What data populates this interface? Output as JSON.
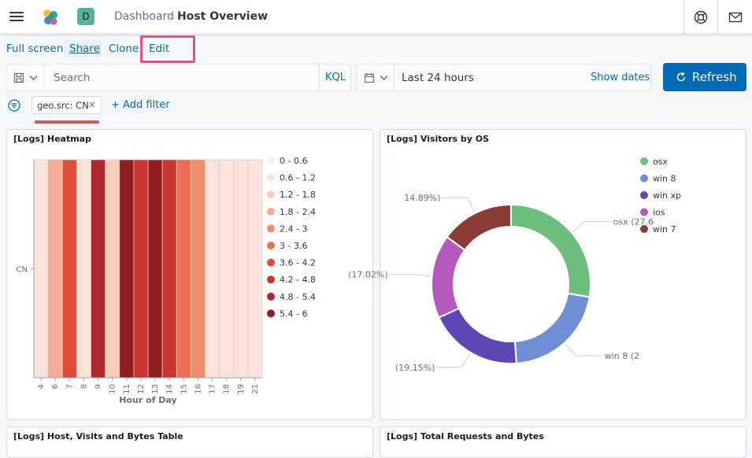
{
  "header": {
    "space_letter": "D",
    "breadcrumb_root": "Dashboard",
    "breadcrumb_sep": "/",
    "breadcrumb_current": "Host Overview",
    "icons": [
      "menu-icon",
      "elastic-logo",
      "help-icon",
      "mail-icon"
    ]
  },
  "top_menu": {
    "full_screen": "Full screen",
    "share": "Share",
    "clone": "Clone",
    "edit": "Edit"
  },
  "query": {
    "placeholder": "Search",
    "value": "",
    "language": "KQL"
  },
  "date": {
    "range": "Last 24 hours",
    "show_dates": "Show dates"
  },
  "refresh": {
    "label": "Refresh"
  },
  "filters": {
    "pill": "geo.src: CN",
    "remove": "×",
    "add": "+ Add filter"
  },
  "colors": {
    "accent": "#006bb4",
    "highlight": "#e94e8a"
  },
  "panels": {
    "heatmap_title": "[Logs] Heatmap",
    "visitors_title": "[Logs] Visitors by OS",
    "table_title": "[Logs] Host, Visits and Bytes Table",
    "requests_title": "[Logs] Total Requests and Bytes"
  },
  "chart_data": [
    {
      "type": "heatmap",
      "title": "[Logs] Heatmap",
      "xlabel": "Hour of Day",
      "ylabel": "",
      "y_categories": [
        "CN"
      ],
      "x": [
        4,
        6,
        7,
        8,
        9,
        10,
        11,
        12,
        13,
        14,
        15,
        16,
        17,
        18,
        19,
        21
      ],
      "bins": [
        "0 - 0.6",
        "0.6 - 1.2",
        "1.2 - 1.8",
        "1.8 - 2.4",
        "2.4 - 3",
        "3 - 3.6",
        "3.6 - 4.2",
        "4.2 - 4.8",
        "4.8 - 5.4",
        "5.4 - 6"
      ],
      "bin_colors": [
        "#fcefe9",
        "#f9e3da",
        "#f6ccbd",
        "#f3ad96",
        "#ee8c6c",
        "#ea6f4e",
        "#de4d3a",
        "#c93632",
        "#ae292c",
        "#901d22"
      ],
      "bin_index": [
        1,
        3,
        6,
        1,
        8,
        2,
        9,
        7,
        9,
        7,
        5,
        4,
        1,
        1,
        1,
        1
      ],
      "legend_position": "right"
    },
    {
      "type": "pie",
      "title": "[Logs] Visitors by OS",
      "donut": true,
      "legend": [
        "osx",
        "win 8",
        "win xp",
        "ios",
        "win 7"
      ],
      "colors": [
        "#6dbd7c",
        "#6f8ed6",
        "#5f46b5",
        "#b659be",
        "#8b3a34"
      ],
      "values": [
        27.6,
        21.3,
        19.15,
        17.02,
        14.89
      ],
      "labels": [
        "osx (27.6",
        "win 8 (2",
        "(19.15%)",
        "(17.02%)",
        "14.89%)"
      ],
      "legend_position": "top-right"
    }
  ]
}
